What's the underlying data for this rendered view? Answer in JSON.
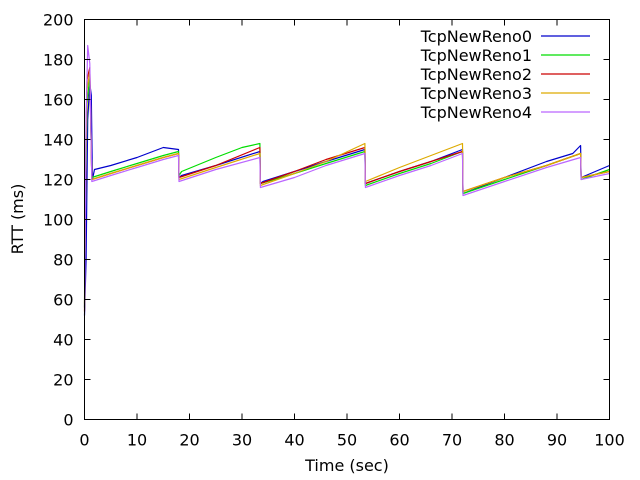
{
  "chart_data": {
    "type": "line",
    "title": "",
    "xlabel": "Time (sec)",
    "ylabel": "RTT (ms)",
    "xlim": [
      0,
      100
    ],
    "ylim": [
      0,
      200
    ],
    "xticks": [
      0,
      10,
      20,
      30,
      40,
      50,
      60,
      70,
      80,
      90,
      100
    ],
    "yticks": [
      0,
      20,
      40,
      60,
      80,
      100,
      120,
      140,
      160,
      180,
      200
    ],
    "grid": false,
    "legend_position": "top-right",
    "series": [
      {
        "name": "TcpNewReno0",
        "color": "#0000cc",
        "x": [
          0.0,
          0.3,
          0.6,
          1.0,
          1.3,
          1.5,
          1.9,
          5.0,
          10.0,
          15.0,
          17.9,
          18.0,
          18.5,
          25.0,
          33.4,
          33.5,
          34.0,
          40.0,
          46.0,
          53.4,
          53.5,
          60.0,
          66.0,
          72.0,
          72.1,
          80.0,
          88.0,
          93.0,
          94.5,
          94.6,
          100.0
        ],
        "y": [
          52,
          80,
          150,
          168,
          162,
          120,
          125,
          127,
          131,
          136,
          135,
          121,
          122,
          127,
          134,
          118,
          119,
          124,
          129,
          135,
          118,
          124,
          129,
          135,
          113,
          121,
          129,
          133,
          137,
          121,
          127
        ]
      },
      {
        "name": "TcpNewReno1",
        "color": "#00dd00",
        "x": [
          0.0,
          0.2,
          0.5,
          1.0,
          1.4,
          5.0,
          10.0,
          15.0,
          17.9,
          18.0,
          18.5,
          25.0,
          30.0,
          33.4,
          33.5,
          40.0,
          46.0,
          53.4,
          53.5,
          60.0,
          66.0,
          72.0,
          72.1,
          80.0,
          88.0,
          94.5,
          94.6,
          100.0
        ],
        "y": [
          56,
          110,
          158,
          172,
          121,
          124,
          128,
          132,
          134,
          122,
          124,
          131,
          136,
          138,
          118,
          123,
          128,
          134,
          117,
          123,
          128,
          134,
          113,
          120,
          127,
          133,
          120,
          125
        ]
      },
      {
        "name": "TcpNewReno2",
        "color": "#cc0000",
        "x": [
          0.0,
          0.3,
          0.5,
          1.0,
          1.4,
          5.0,
          10.0,
          15.0,
          17.9,
          18.0,
          25.0,
          33.4,
          33.5,
          40.0,
          46.0,
          53.4,
          53.5,
          60.0,
          66.0,
          72.0,
          72.1,
          80.0,
          88.0,
          94.5,
          94.6,
          100.0
        ],
        "y": [
          54,
          145,
          170,
          176,
          120,
          123,
          127,
          131,
          133,
          121,
          127,
          136,
          118,
          124,
          130,
          136,
          118,
          124,
          129,
          134,
          114,
          121,
          127,
          133,
          121,
          124
        ]
      },
      {
        "name": "TcpNewReno3",
        "color": "#ddaa00",
        "x": [
          0.0,
          0.2,
          0.5,
          1.0,
          1.4,
          5.0,
          10.0,
          15.0,
          17.9,
          18.0,
          25.0,
          33.4,
          33.5,
          40.0,
          46.0,
          53.4,
          53.5,
          60.0,
          66.0,
          72.0,
          72.1,
          80.0,
          88.0,
          94.5,
          94.6,
          100.0
        ],
        "y": [
          58,
          120,
          165,
          174,
          120,
          123,
          127,
          131,
          133,
          120,
          126,
          133,
          117,
          123,
          129,
          138,
          119,
          126,
          132,
          138,
          114,
          121,
          127,
          133,
          121,
          124
        ]
      },
      {
        "name": "TcpNewReno4",
        "color": "#bb66ff",
        "x": [
          0.0,
          0.3,
          0.6,
          1.0,
          1.4,
          5.0,
          10.0,
          15.0,
          17.9,
          18.0,
          25.0,
          33.4,
          33.5,
          40.0,
          46.0,
          53.4,
          53.5,
          60.0,
          66.0,
          72.0,
          72.1,
          80.0,
          88.0,
          94.5,
          94.6,
          100.0
        ],
        "y": [
          56,
          150,
          187,
          178,
          119,
          122,
          126,
          130,
          132,
          119,
          125,
          131,
          116,
          121,
          127,
          133,
          116,
          122,
          127,
          133,
          112,
          119,
          126,
          131,
          120,
          123
        ]
      }
    ]
  }
}
